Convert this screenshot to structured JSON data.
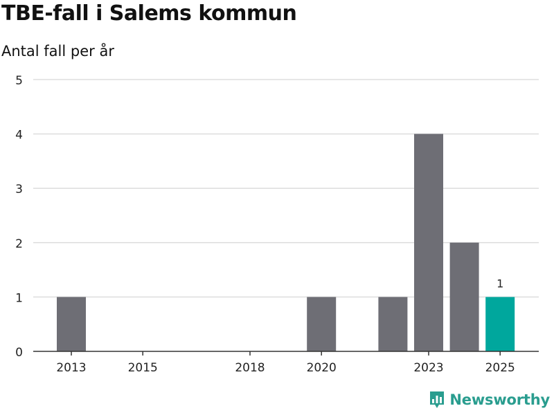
{
  "chart_data": {
    "type": "bar",
    "title": "TBE-fall i Salems kommun",
    "subtitle": "Antal fall per år",
    "x": [
      2013,
      2014,
      2015,
      2016,
      2017,
      2018,
      2019,
      2020,
      2021,
      2022,
      2023,
      2024,
      2025
    ],
    "values": [
      1,
      0,
      0,
      0,
      0,
      0,
      0,
      1,
      0,
      1,
      4,
      2,
      1
    ],
    "x_tick_labels": [
      "2013",
      "2015",
      "2018",
      "2020",
      "2023",
      "2025"
    ],
    "ylim": [
      0,
      5
    ],
    "y_ticks": [
      0,
      1,
      2,
      3,
      4,
      5
    ],
    "highlight_year": 2025,
    "highlight_label": "1",
    "grid": true,
    "colors": {
      "bar": "#6e6e75",
      "highlight": "#00a79d",
      "grid": "#dddddd",
      "axis": "#333333"
    }
  },
  "brand": {
    "name": "Newsworthy",
    "icon": "bar-chart-logo-icon",
    "color": "#2a9d8f"
  }
}
